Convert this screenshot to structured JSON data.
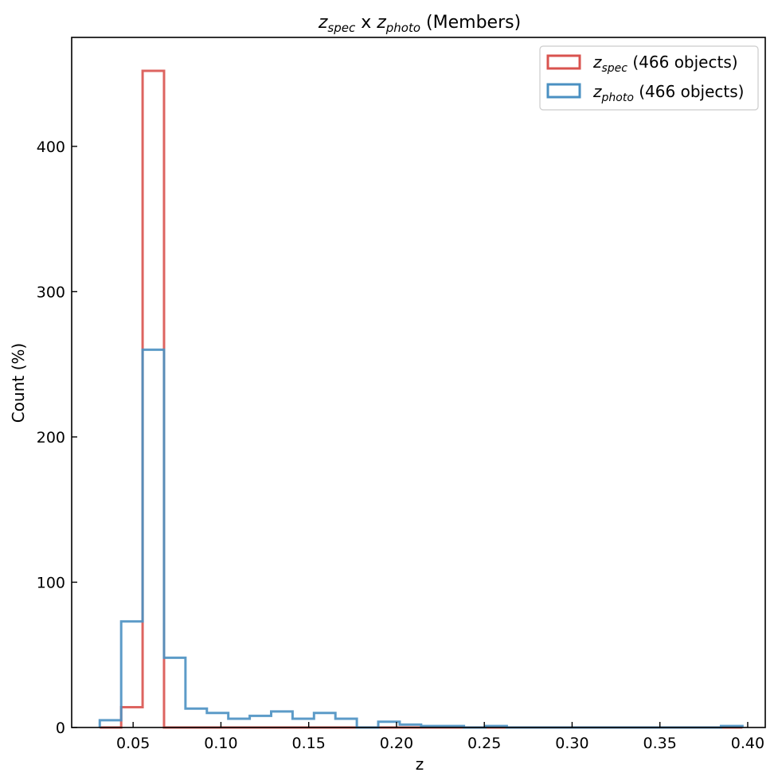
{
  "chart_data": {
    "type": "histogram",
    "title": {
      "main1": "z",
      "sub1": "spec",
      "mid": " x ",
      "main2": "z",
      "sub2": "photo",
      "suffix": " (Members)"
    },
    "xlabel": "z",
    "ylabel": "Count (%)",
    "xlim": [
      0.015,
      0.41
    ],
    "ylim": [
      0,
      475
    ],
    "xticks": [
      0.05,
      0.1,
      0.15,
      0.2,
      0.25,
      0.3,
      0.35,
      0.4
    ],
    "xtick_labels": [
      "0.05",
      "0.10",
      "0.15",
      "0.20",
      "0.25",
      "0.30",
      "0.35",
      "0.40"
    ],
    "yticks": [
      0,
      100,
      200,
      300,
      400
    ],
    "ytick_labels": [
      "0",
      "100",
      "200",
      "300",
      "400"
    ],
    "grid": false,
    "legend_position": "top-right",
    "series": [
      {
        "name_main": "z",
        "name_sub": "spec",
        "name_suffix": " (466 objects)",
        "color": "#d9534f",
        "bin_start": 0.031,
        "bin_width": 0.0122,
        "values": [
          0,
          14,
          452,
          0,
          0,
          0,
          0,
          0,
          0,
          0,
          0,
          0,
          0,
          0,
          0,
          0,
          0,
          0,
          0,
          0,
          0,
          0,
          0,
          0,
          0,
          0,
          0,
          0,
          0,
          0
        ]
      },
      {
        "name_main": "z",
        "name_sub": "photo",
        "name_suffix": " (466 objects)",
        "color": "#4a90c2",
        "bin_start": 0.031,
        "bin_width": 0.0122,
        "values": [
          5,
          73,
          260,
          48,
          13,
          10,
          6,
          8,
          11,
          6,
          10,
          6,
          0,
          4,
          2,
          1,
          1,
          0,
          1,
          0,
          0,
          0,
          0,
          0,
          0,
          0,
          0,
          0,
          0,
          1
        ]
      }
    ]
  }
}
